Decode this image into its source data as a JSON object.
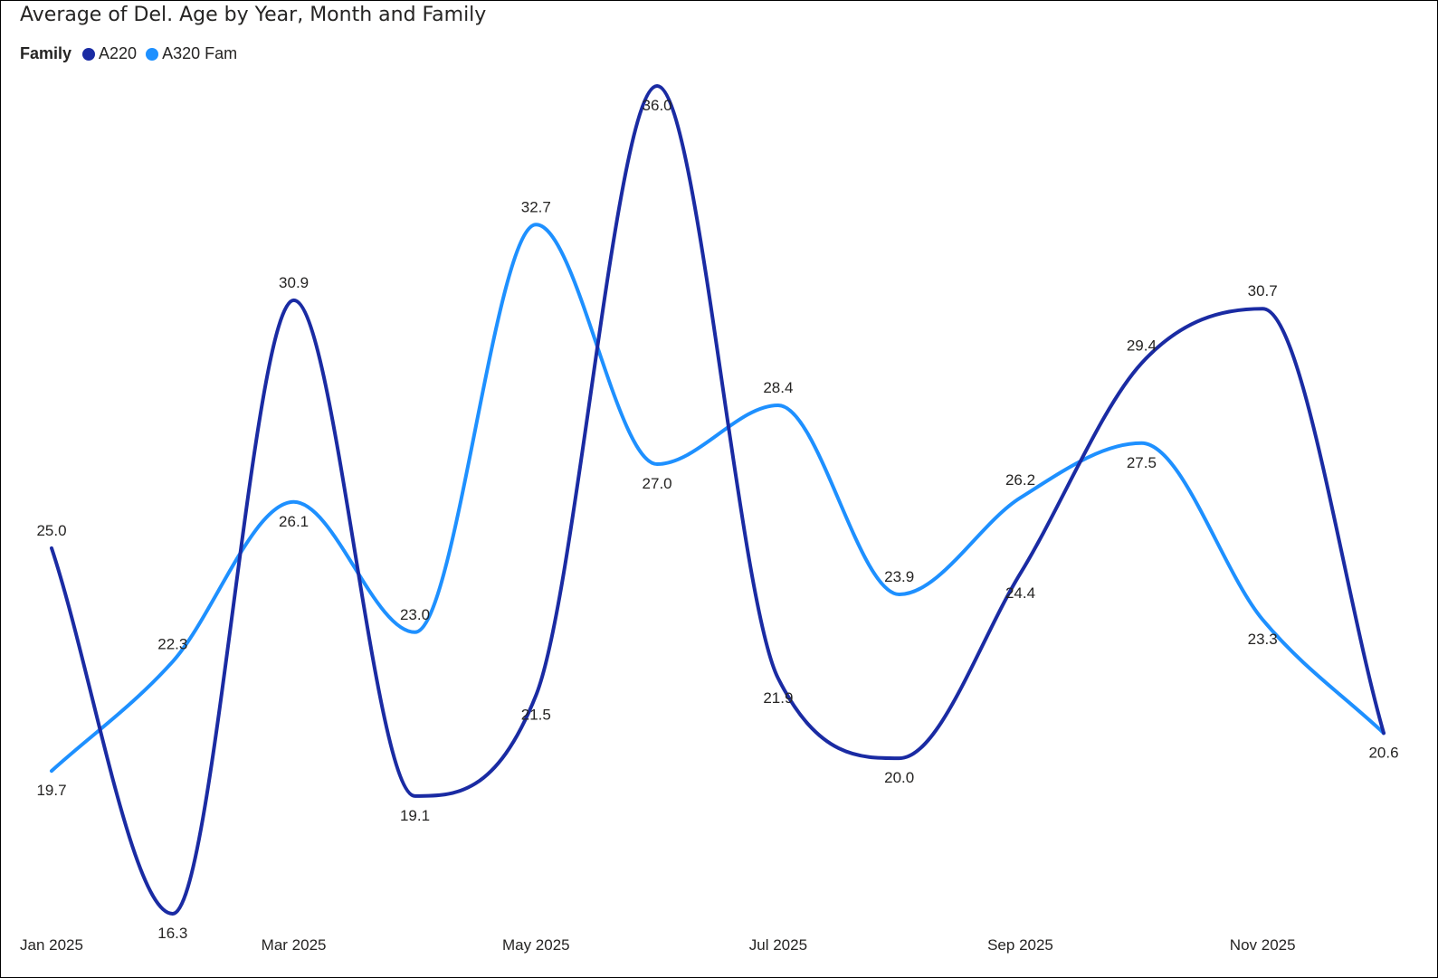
{
  "chart_data": {
    "type": "line",
    "title": "Average of Del. Age by Year, Month and Family",
    "legend_title": "Family",
    "legend_position": "top-left",
    "grid": false,
    "ylim": [
      14,
      38
    ],
    "x": [
      "Jan 2025",
      "Feb 2025",
      "Mar 2025",
      "Apr 2025",
      "May 2025",
      "Jun 2025",
      "Jul 2025",
      "Aug 2025",
      "Sep 2025",
      "Oct 2025",
      "Nov 2025",
      "Dec 2025"
    ],
    "x_tick_labels": [
      "Jan 2025",
      "Mar 2025",
      "May 2025",
      "Jul 2025",
      "Sep 2025",
      "Nov 2025"
    ],
    "series": [
      {
        "name": "A220",
        "color": "#1A2BA3",
        "values": [
          25.0,
          16.3,
          30.9,
          19.1,
          21.5,
          36.0,
          21.9,
          20.0,
          24.4,
          29.4,
          30.7,
          20.6
        ],
        "labels": [
          "25.0",
          "16.3",
          "30.9",
          "19.1",
          "21.5",
          "36.0",
          "21.9",
          "20.0",
          "24.4",
          "29.4",
          "30.7",
          "20.6"
        ]
      },
      {
        "name": "A320 Fam",
        "color": "#1E90FF",
        "values": [
          19.7,
          22.3,
          26.1,
          23.0,
          32.7,
          27.0,
          28.4,
          23.9,
          26.2,
          27.5,
          23.3,
          20.6
        ],
        "labels": [
          "19.7",
          "22.3",
          "26.1",
          "23.0",
          "32.7",
          "27.0",
          "28.4",
          "23.9",
          "26.2",
          "27.5",
          "23.3",
          "20.6"
        ]
      }
    ]
  }
}
